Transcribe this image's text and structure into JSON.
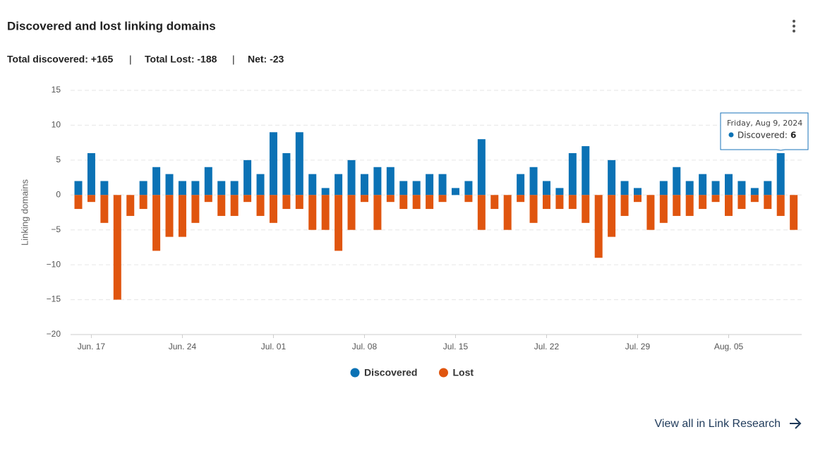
{
  "title": "Discovered and lost linking domains",
  "summary": [
    "Total discovered: +165",
    "Total Lost: -188",
    "Net: -23"
  ],
  "link": "View all in Link Research",
  "tooltip": {
    "date": "Friday, Aug 9, 2024",
    "label": "Discovered:",
    "value": 6
  },
  "chart_data": {
    "type": "bar",
    "y_label": "Linking domains",
    "categories": [
      null,
      "Jun. 17",
      null,
      null,
      null,
      null,
      null,
      null,
      "Jun. 24",
      null,
      null,
      null,
      null,
      null,
      null,
      "Jul. 01",
      null,
      null,
      null,
      null,
      null,
      null,
      "Jul. 08",
      null,
      null,
      null,
      null,
      null,
      null,
      "Jul. 15",
      null,
      null,
      null,
      null,
      null,
      null,
      "Jul. 22",
      null,
      null,
      null,
      null,
      null,
      null,
      "Jul. 29",
      null,
      null,
      null,
      null,
      null,
      null,
      "Aug. 05",
      null,
      null,
      null,
      null,
      null
    ],
    "series": [
      {
        "name": "Discovered",
        "color": "#0b72b5",
        "values": [
          2,
          6,
          2,
          0,
          0,
          2,
          4,
          3,
          2,
          2,
          4,
          2,
          2,
          5,
          3,
          9,
          6,
          9,
          3,
          1,
          3,
          5,
          3,
          4,
          4,
          2,
          2,
          3,
          3,
          1,
          2,
          8,
          0,
          0,
          3,
          4,
          2,
          1,
          6,
          7,
          0,
          5,
          2,
          1,
          0,
          2,
          4,
          2,
          3,
          2,
          3,
          2,
          1,
          2,
          6,
          0
        ]
      },
      {
        "name": "Lost",
        "color": "#e0550f",
        "values": [
          -2,
          -1,
          -4,
          -15,
          -3,
          -2,
          -8,
          -6,
          -6,
          -4,
          -1,
          -3,
          -3,
          -1,
          -3,
          -4,
          -2,
          -2,
          -5,
          -5,
          -8,
          -5,
          -1,
          -5,
          -1,
          -2,
          -2,
          -2,
          -1,
          0,
          -1,
          -5,
          -2,
          -5,
          -1,
          -4,
          -2,
          -2,
          -2,
          -4,
          -9,
          -6,
          -3,
          -1,
          -5,
          -4,
          -3,
          -3,
          -2,
          -1,
          -3,
          -2,
          -1,
          -2,
          -3,
          -5
        ]
      }
    ],
    "ylim": [
      -20,
      15
    ],
    "yticks": [
      {
        "value": -20,
        "label": "−20"
      },
      {
        "value": -15,
        "label": "−15"
      },
      {
        "value": -10,
        "label": "−10"
      },
      {
        "value": -5,
        "label": "−5"
      },
      0,
      5,
      10,
      15
    ],
    "grid": true,
    "legend": "bottom"
  }
}
